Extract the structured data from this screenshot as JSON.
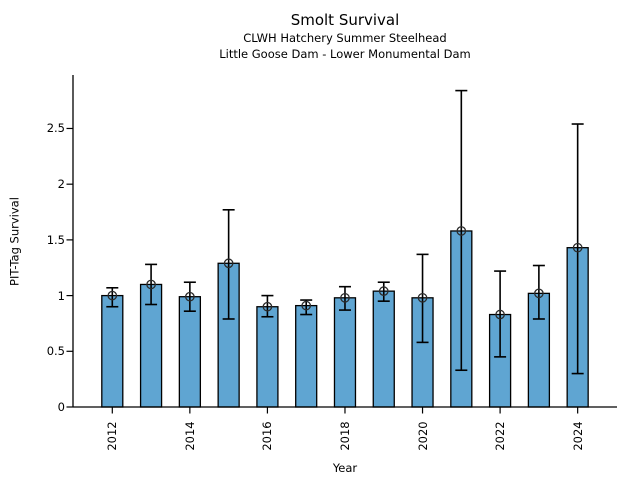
{
  "figure": {
    "title": "Smolt Survival",
    "subtitle1": "CLWH Hatchery Summer Steelhead",
    "subtitle2": "Little Goose Dam - Lower Monumental Dam",
    "xlabel": "Year",
    "ylabel": "PIT-Tag Survival"
  },
  "chart_data": {
    "type": "bar",
    "title": "Smolt Survival",
    "subtitle": [
      "CLWH Hatchery Summer Steelhead",
      "Little Goose Dam - Lower Monumental Dam"
    ],
    "xlabel": "Year",
    "ylabel": "PIT-Tag Survival",
    "categories": [
      2012,
      2013,
      2014,
      2015,
      2016,
      2017,
      2018,
      2019,
      2020,
      2021,
      2022,
      2023,
      2024
    ],
    "values": [
      1.0,
      1.1,
      0.99,
      1.29,
      0.9,
      0.91,
      0.98,
      1.04,
      0.98,
      1.58,
      0.83,
      1.02,
      1.43
    ],
    "error_low": [
      0.9,
      0.92,
      0.86,
      0.79,
      0.81,
      0.83,
      0.87,
      0.95,
      0.58,
      0.33,
      0.45,
      0.79,
      0.3
    ],
    "error_high": [
      1.07,
      1.28,
      1.12,
      1.77,
      1.0,
      0.96,
      1.08,
      1.12,
      1.37,
      2.84,
      1.22,
      1.27,
      2.54
    ],
    "yticks": [
      0,
      0.5,
      1,
      1.5,
      2,
      2.5
    ],
    "xticks": [
      2012,
      2014,
      2016,
      2018,
      2020,
      2022,
      2024
    ],
    "ylim": [
      0,
      2.98
    ],
    "bar_color": "#5FA5D2",
    "bar_edge_color": "#000000",
    "errorbar_color": "#000000",
    "marker": "open-circle",
    "grid": false,
    "legend": null
  }
}
